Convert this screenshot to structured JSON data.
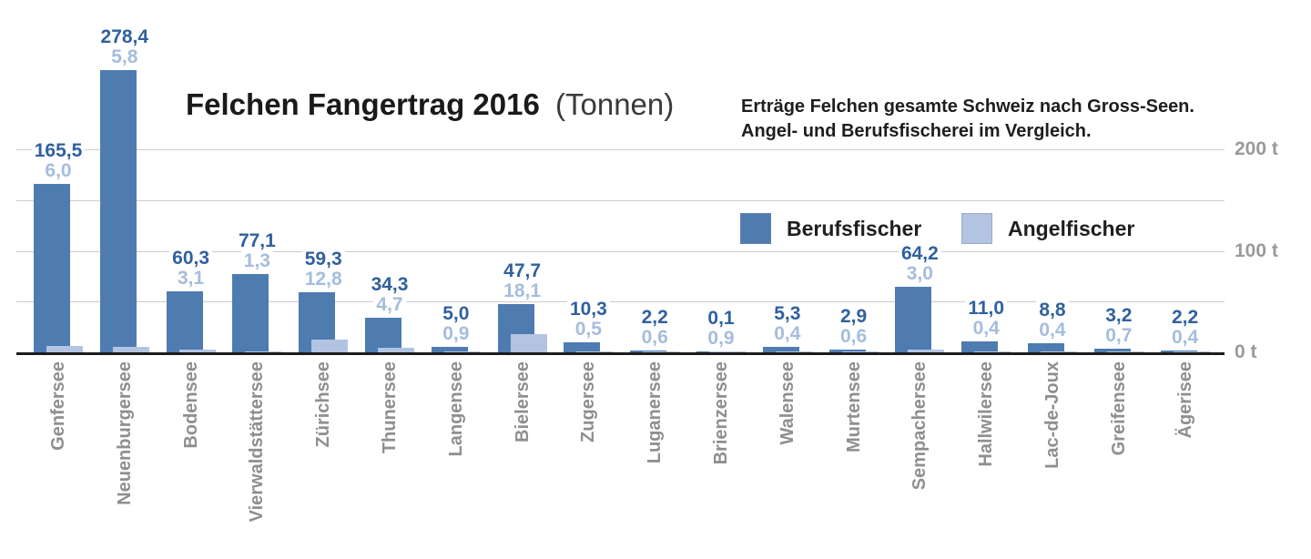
{
  "chart_data": {
    "type": "bar",
    "title": "Felchen Fangertrag 2016",
    "title_note": "(Tonnen)",
    "subtitle_line1": "Erträge Felchen gesamte Schweiz nach Gross-Seen.",
    "subtitle_line2": "Angel- und Berufsfischerei im Vergleich.",
    "unit": "t",
    "ylim": [
      0,
      200
    ],
    "grid": true,
    "grid_step": 50,
    "legend_position": "middle-right",
    "y_ticks": [
      {
        "value": 200,
        "label": "200 t"
      },
      {
        "value": 150,
        "label": ""
      },
      {
        "value": 100,
        "label": "100 t"
      },
      {
        "value": 50,
        "label": ""
      },
      {
        "value": 0,
        "label": "0 t"
      }
    ],
    "categories": [
      "Genfersee",
      "Neuenburgersee",
      "Bodensee",
      "Vierwaldstättersee",
      "Zürichsee",
      "Thunersee",
      "Langensee",
      "Bielersee",
      "Zugersee",
      "Luganersee",
      "Brienzersee",
      "Walensee",
      "Murtensee",
      "Sempachersee",
      "Hallwilersee",
      "Lac-de-Joux",
      "Greifensee",
      "Ägerisee"
    ],
    "series": [
      {
        "name": "Berufsfischer",
        "color": "#4e7cb0",
        "label_color": "#30609f",
        "values": [
          165.5,
          278.4,
          60.3,
          77.1,
          59.3,
          34.3,
          5.0,
          47.7,
          10.3,
          2.2,
          0.1,
          5.3,
          2.9,
          64.2,
          11.0,
          8.8,
          3.2,
          2.2
        ],
        "labels": [
          "165,5",
          "278,4",
          "60,3",
          "77,1",
          "59,3",
          "34,3",
          "5,0",
          "47,7",
          "10,3",
          "2,2",
          "0,1",
          "5,3",
          "2,9",
          "64,2",
          "11,0",
          "8,8",
          "3,2",
          "2,2"
        ]
      },
      {
        "name": "Angelfischer",
        "color": "#b2c4e2",
        "label_color": "#a5bddd",
        "values": [
          6.0,
          5.8,
          3.1,
          1.3,
          12.8,
          4.7,
          0.9,
          18.1,
          0.5,
          0.6,
          0.9,
          0.4,
          0.6,
          3.0,
          0.4,
          0.4,
          0.7,
          0.4
        ],
        "labels": [
          "6,0",
          "5,8",
          "3,1",
          "1,3",
          "12,8",
          "4,7",
          "0,9",
          "18,1",
          "0,5",
          "0,6",
          "0,9",
          "0,4",
          "0,6",
          "3,0",
          "0,4",
          "0,4",
          "0,7",
          "0,4"
        ]
      }
    ],
    "colors": {
      "grid": "#cccccc",
      "baseline": "#1c1c1c",
      "axis_text": "#9a9a9a",
      "category_text": "#8f8f8f",
      "title": "#1a1a1a",
      "subtitle": "#1e1e1e",
      "background": "#ffffff"
    }
  }
}
